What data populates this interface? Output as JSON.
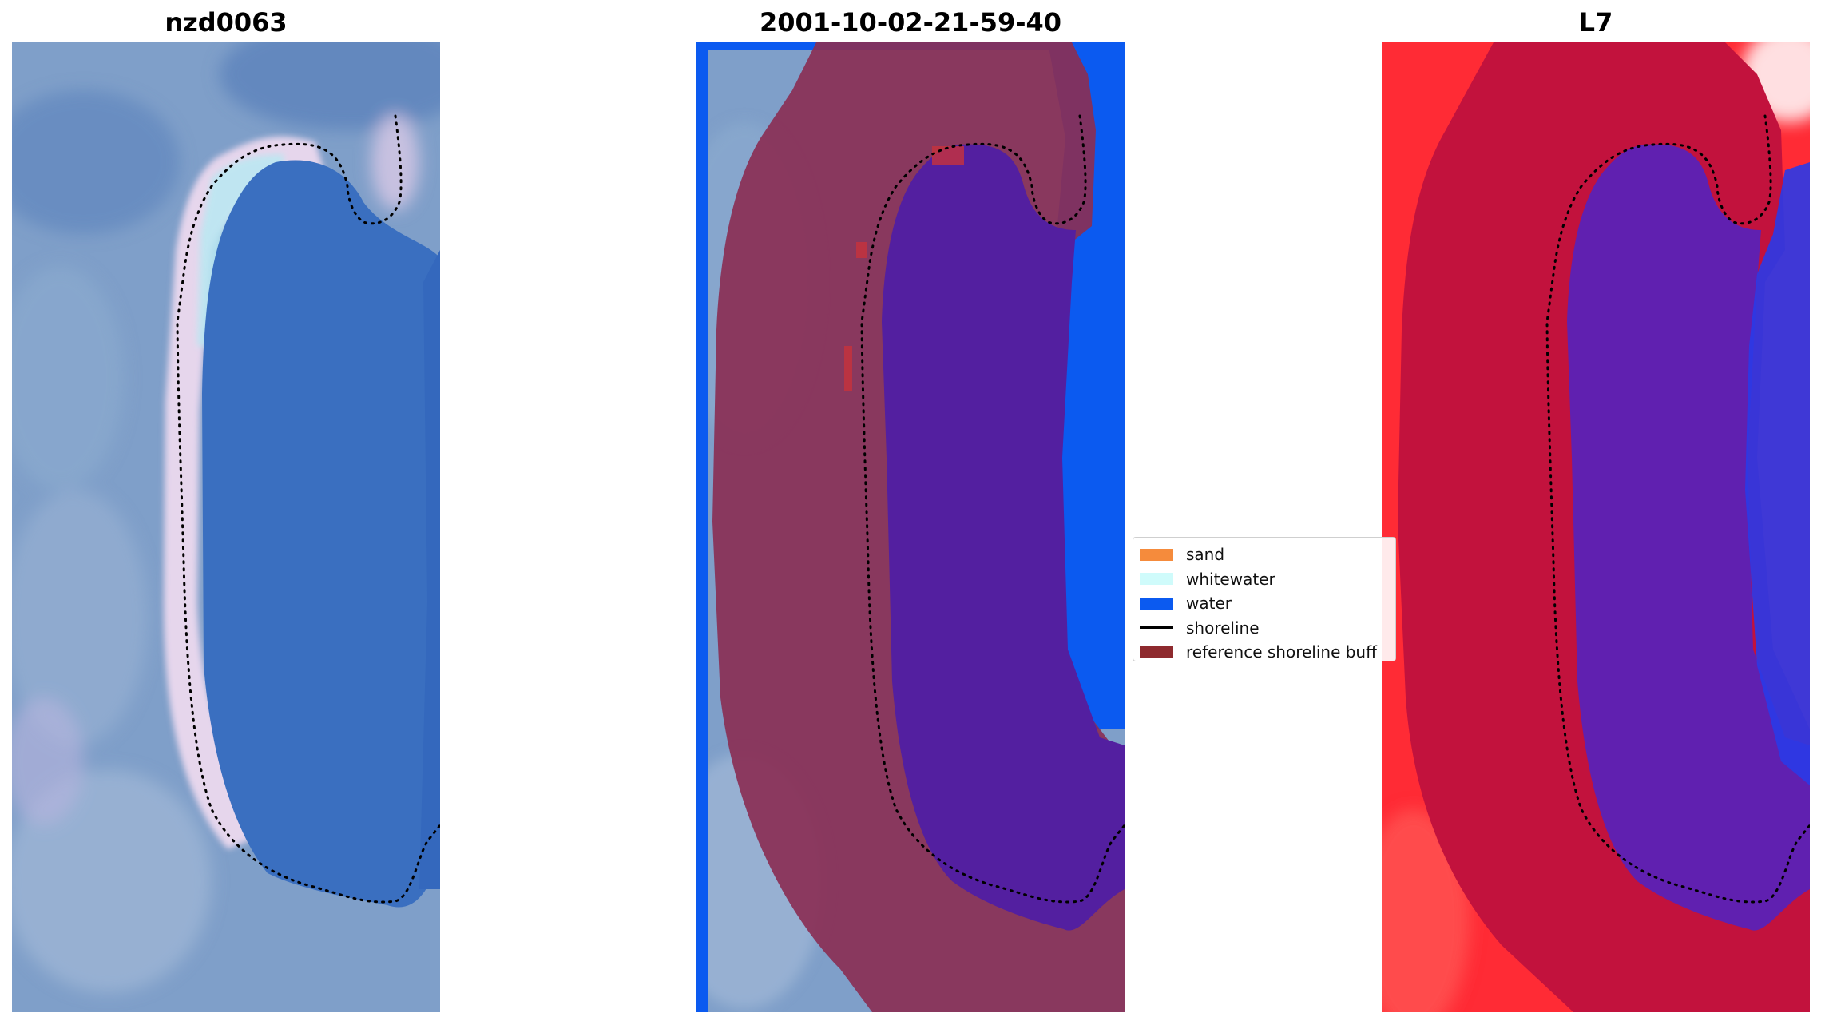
{
  "panels": [
    {
      "title": "nzd0063"
    },
    {
      "title": "2001-10-02-21-59-40"
    },
    {
      "title": "L7"
    }
  ],
  "legend": [
    {
      "label": "sand",
      "color": "#f58b3c",
      "kind": "patch"
    },
    {
      "label": "whitewater",
      "color": "#cffbfb",
      "kind": "patch"
    },
    {
      "label": "water",
      "color": "#0b5af0",
      "kind": "patch"
    },
    {
      "label": "shoreline",
      "color": "#000000",
      "kind": "line"
    },
    {
      "label": "reference shoreline buff",
      "color": "#8e2a2e",
      "kind": "patch"
    }
  ],
  "colors": {
    "rgb_water": "#3a6fc0",
    "rgb_land": "#7e9ec8",
    "rgb_beach": "#e3d2ea",
    "class_water": "#0b5af0",
    "buffer_overlay": "#8a2f55",
    "buffer_water": "#531fa0",
    "mndwi_positive": "#ff2b35",
    "mndwi_buffer": "#c2123d",
    "mndwi_negative": "#6020b0",
    "mndwi_strong_negative": "#2a3ae8"
  }
}
